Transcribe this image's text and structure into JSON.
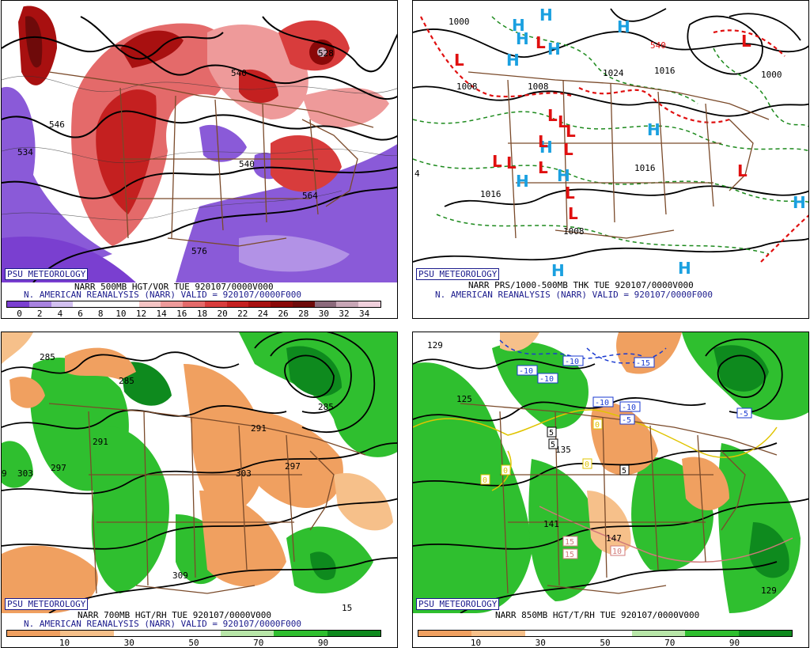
{
  "brand": "PSU METEOROLOGY",
  "panels": [
    {
      "caption1": "NARR 500MB HGT/VOR TUE 920107/0000V000",
      "caption2": "N. AMERICAN REANALYSIS (NARR) VALID = 920107/0000F000",
      "scale_colors": [
        "#7a3fd0",
        "#a882e0",
        "#d2c0f0",
        "#ffffff",
        "#ffffff",
        "#ffffff",
        "#f4c4c4",
        "#ee9a9a",
        "#e46a6a",
        "#d83c3c",
        "#c42020",
        "#a81010",
        "#8a0808",
        "#6e0a0a",
        "#8c6a7c",
        "#c8a6b6",
        "#f0d0dc"
      ],
      "ticks": [
        "0",
        "2",
        "4",
        "6",
        "8",
        "10",
        "12",
        "14",
        "16",
        "18",
        "20",
        "22",
        "24",
        "26",
        "28",
        "30",
        "32",
        "34"
      ],
      "labels": [
        "540",
        "534",
        "546",
        "540",
        "564",
        "576",
        "528"
      ]
    },
    {
      "caption1": "NARR PRS/1000-500MB THK TUE 920107/0000V000",
      "caption2": "N. AMERICAN REANALYSIS (NARR) VALID = 920107/0000F000",
      "labels": [
        "1000",
        "1008",
        "1016",
        "1008",
        "1024",
        "1016",
        "1000",
        "1008",
        "540",
        "4",
        "1016"
      ],
      "highs": [
        "H",
        "H",
        "H",
        "H",
        "H",
        "H",
        "H",
        "H",
        "H",
        "H",
        "H",
        "H",
        "H"
      ],
      "lows": [
        "L",
        "L",
        "L",
        "L",
        "L",
        "L",
        "L",
        "L",
        "L",
        "L",
        "L",
        "L",
        "L",
        "L"
      ]
    },
    {
      "caption1": "NARR 700MB HGT/RH TUE 920107/0000V000",
      "caption2": "N. AMERICAN REANALYSIS (NARR) VALID = 920107/0000F000",
      "scale_colors": [
        "#f0a060",
        "#f6c08a",
        "#ffffff",
        "#ffffff",
        "#b8e6a8",
        "#2fbf2f",
        "#0e8a1e"
      ],
      "ticks": [
        "10",
        "30",
        "50",
        "70",
        "90"
      ],
      "labels": [
        "285",
        "285",
        "291",
        "297",
        "303",
        "285",
        "291",
        "297",
        "303",
        "309",
        "9",
        "15"
      ]
    },
    {
      "caption1": "NARR 850MB HGT/T/RH TUE 920107/0000V000",
      "scale_colors": [
        "#f0a060",
        "#f6c08a",
        "#ffffff",
        "#ffffff",
        "#b8e6a8",
        "#2fbf2f",
        "#0e8a1e"
      ],
      "ticks": [
        "10",
        "30",
        "50",
        "70",
        "90"
      ],
      "labels": [
        "129",
        "125",
        "135",
        "141",
        "147",
        "129"
      ],
      "temp_boxes": [
        "-10",
        "-10",
        "-10",
        "-15",
        "-10",
        "-10",
        "-5",
        "-5",
        "5",
        "5",
        "5",
        "0",
        "0",
        "0",
        "0",
        "15",
        "15",
        "10"
      ]
    }
  ]
}
